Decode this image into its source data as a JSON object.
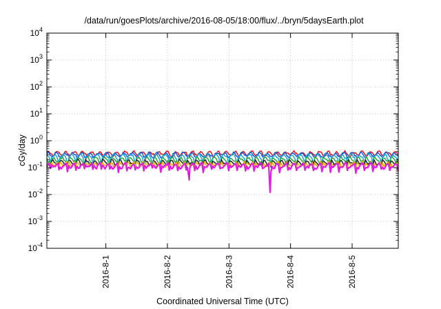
{
  "chart_data": {
    "type": "line",
    "title": "/data/run/goesPlots/archive/2016-08-05/18:00/flux/../bryn/5daysEarth.plot",
    "xlabel": "Coordinated Universal Time (UTC)",
    "ylabel": "cGy/day",
    "yscale": "log",
    "ylim": [
      0.0001,
      10000
    ],
    "xlim": [
      "2016-07-31T01:00",
      "2016-08-05T18:00"
    ],
    "grid": true,
    "legend": "none",
    "y_ticks": [
      {
        "base": "10",
        "exp": "-4",
        "value": 0.0001
      },
      {
        "base": "10",
        "exp": "-3",
        "value": 0.001
      },
      {
        "base": "10",
        "exp": "-2",
        "value": 0.01
      },
      {
        "base": "10",
        "exp": "-1",
        "value": 0.1
      },
      {
        "base": "10",
        "exp": "0",
        "value": 1
      },
      {
        "base": "10",
        "exp": "1",
        "value": 10
      },
      {
        "base": "10",
        "exp": "2",
        "value": 100
      },
      {
        "base": "10",
        "exp": "3",
        "value": 1000
      },
      {
        "base": "10",
        "exp": "4",
        "value": 10000
      }
    ],
    "x_ticks": [
      {
        "label": "2016-8-1",
        "value": "2016-08-01T00:00"
      },
      {
        "label": "2016-8-2",
        "value": "2016-08-02T00:00"
      },
      {
        "label": "2016-8-3",
        "value": "2016-08-03T00:00"
      },
      {
        "label": "2016-8-4",
        "value": "2016-08-04T00:00"
      },
      {
        "label": "2016-8-5",
        "value": "2016-08-05T00:00"
      }
    ],
    "series": [
      {
        "color": "#e8181b",
        "baseline": 0.33,
        "dips": []
      },
      {
        "color": "#1f5bd8",
        "baseline": 0.3,
        "dips": []
      },
      {
        "color": "#1aa8e0",
        "baseline": 0.26,
        "dips": []
      },
      {
        "color": "#2aa84a",
        "baseline": 0.2,
        "dips": []
      },
      {
        "color": "#2b2b2b",
        "baseline": 0.16,
        "dips": []
      },
      {
        "color": "#e8aa10",
        "baseline": 0.14,
        "dips": []
      },
      {
        "color": "#e01ee0",
        "baseline": 0.12,
        "dips": [
          {
            "x": "2016-08-02T08:30",
            "y": 0.035
          },
          {
            "x": "2016-08-03T16:00",
            "y": 0.012
          }
        ]
      }
    ]
  }
}
